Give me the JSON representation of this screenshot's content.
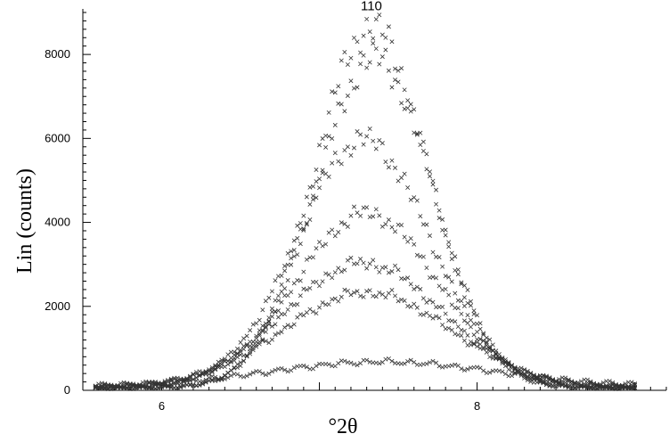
{
  "chart_data": {
    "type": "scatter",
    "title": "",
    "xlabel": "°2θ",
    "ylabel": "Lin (counts)",
    "xlim": [
      5.5,
      9.2
    ],
    "ylim": [
      0,
      9000
    ],
    "xticks": [
      6,
      8
    ],
    "xtick_labels": [
      "6",
      "8"
    ],
    "yticks": [
      0,
      2000,
      4000,
      6000,
      8000
    ],
    "ytick_labels": [
      "0",
      "2000",
      "4000",
      "6000",
      "8000"
    ],
    "grid": false,
    "legend": "none",
    "marker": "x",
    "marker_color": "#333333",
    "annotations": [
      {
        "text": "110",
        "x": 7.33,
        "y": 9050
      }
    ],
    "x_start": 5.58,
    "x_end": 9.0,
    "x_step": 0.02,
    "series": [
      {
        "peak": 8600,
        "center": 7.33,
        "width": 0.36,
        "baseline": 60
      },
      {
        "peak": 7850,
        "center": 7.35,
        "width": 0.37,
        "baseline": 60
      },
      {
        "peak": 5900,
        "center": 7.28,
        "width": 0.42,
        "baseline": 70
      },
      {
        "peak": 4150,
        "center": 7.3,
        "width": 0.45,
        "baseline": 70
      },
      {
        "peak": 2950,
        "center": 7.28,
        "width": 0.5,
        "baseline": 80
      },
      {
        "peak": 2250,
        "center": 7.3,
        "width": 0.53,
        "baseline": 80
      },
      {
        "peak": 580,
        "center": 7.4,
        "width": 0.7,
        "baseline": 100
      }
    ]
  }
}
